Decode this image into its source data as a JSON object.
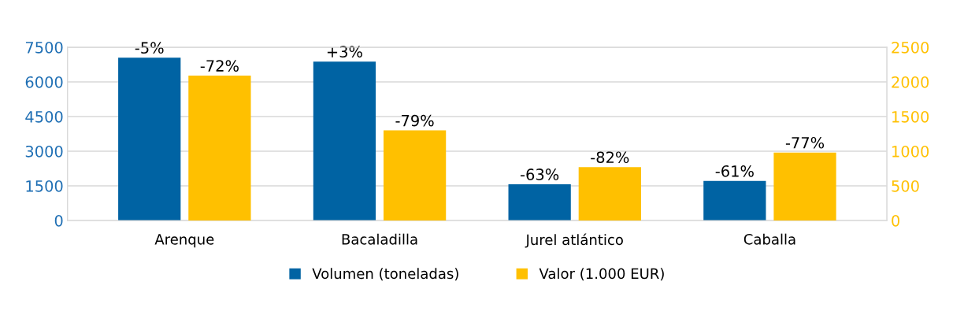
{
  "chart_data": {
    "type": "bar",
    "categories": [
      "Arenque",
      "Bacaladilla",
      "Jurel atlántico",
      "Caballa"
    ],
    "series": [
      {
        "name": "Volumen (toneladas)",
        "color": "#0063a3",
        "values": [
          7050,
          6880,
          1570,
          1710
        ]
      },
      {
        "name": "Valor (1.000 EUR)",
        "color": "#ffc000",
        "axis": "y2",
        "values": [
          2090,
          1300,
          770,
          980
        ]
      }
    ],
    "annotations": [
      "-5%",
      "+3%",
      "-63%",
      "-61%",
      "-72%",
      "-79%",
      "-82%",
      "-77%"
    ],
    "ylim": [
      0,
      7500
    ],
    "yticks": [
      0,
      1500,
      3000,
      4500,
      6000,
      7500
    ],
    "y2lim": [
      0,
      2500
    ],
    "y2ticks": [
      0,
      500,
      1000,
      1500,
      2000,
      2500
    ],
    "grid": "y",
    "legend": "bottom"
  }
}
